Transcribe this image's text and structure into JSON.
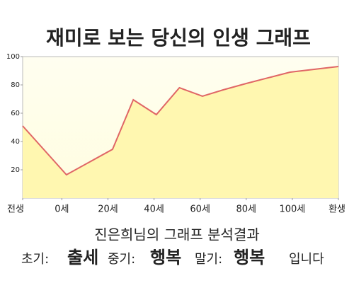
{
  "chart_data": {
    "type": "line",
    "title": "재미로 보는 당신의 인생 그래프",
    "x": [
      -17,
      2,
      22,
      31,
      41,
      51,
      61,
      70,
      80,
      99,
      120
    ],
    "series": [
      {
        "color": "#e06666",
        "values": [
          51,
          16.5,
          34.5,
          69.5,
          59,
          78,
          72,
          76.5,
          81,
          89,
          93
        ]
      }
    ],
    "xlim": [
      -17,
      120
    ],
    "xticks": [
      {
        "value": -17,
        "label": "전생"
      },
      {
        "value": 0,
        "label": "0세"
      },
      {
        "value": 20,
        "label": "20세"
      },
      {
        "value": 40,
        "label": "40세"
      },
      {
        "value": 60,
        "label": "60세"
      },
      {
        "value": 80,
        "label": "80세"
      },
      {
        "value": 100,
        "label": "100세"
      },
      {
        "value": 120,
        "label": "환생"
      }
    ],
    "ylim": [
      0,
      100
    ],
    "yticks": [
      20,
      40,
      60,
      80,
      100
    ],
    "grid": false,
    "area_color": "#fff7b0"
  },
  "result": {
    "heading": "진은희님의 그래프 분석결과",
    "parts": [
      {
        "label": "초기:",
        "value": "출세"
      },
      {
        "label": "중기:",
        "value": "행복"
      },
      {
        "label": "말기:",
        "value": "행복"
      }
    ],
    "ending": "입니다"
  }
}
